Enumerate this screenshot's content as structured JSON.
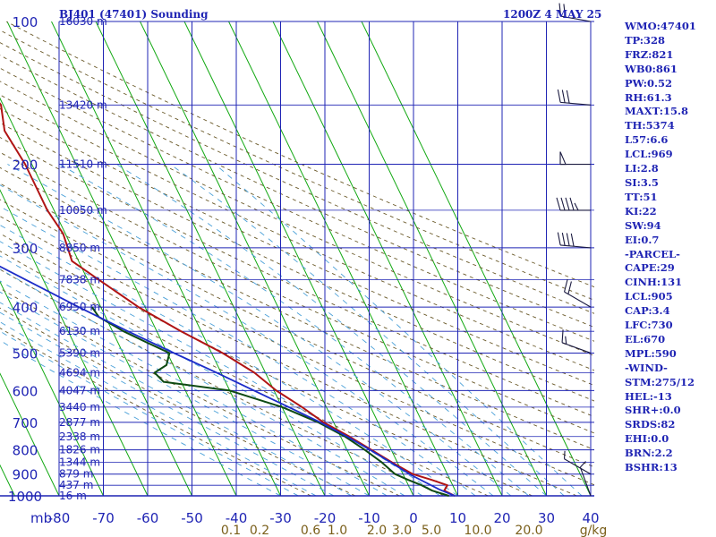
{
  "header": {
    "station": "BJ401 (47401) Sounding",
    "time": "1200Z  4 MAY 25"
  },
  "stats": [
    "WMO:47401",
    "TP:328",
    "FRZ:821",
    "WB0:861",
    "PW:0.52",
    "RH:61.3",
    "MAXT:15.8",
    "TH:5374",
    "L57:6.6",
    "LCL:969",
    "LI:2.8",
    "SI:3.5",
    "TT:51",
    "KI:22",
    "SW:94",
    "EI:0.7",
    "-PARCEL-",
    "CAPE:29",
    "CINH:131",
    "LCL:905",
    "CAP:3.4",
    "LFC:730",
    "EL:670",
    "MPL:590",
    "-WIND-",
    "STM:275/12",
    "HEL:-13",
    "SHR+:0.0",
    "SRDS:82",
    "EHI:0.0",
    "BRN:2.2",
    "BSHR:13"
  ],
  "colors": {
    "grid": "#1f24b4",
    "isotherm": "#12a812",
    "dry_adiabat": "#6b5a2a",
    "moist_adiabat": "#4aa0d8",
    "temperature": "#b01414",
    "dewpoint": "#0e4a12",
    "parcel": "#1c2cc8"
  },
  "chart_data": {
    "type": "line",
    "title": "BJ401 (47401) Sounding",
    "chart_kind": "skew-T log-P",
    "y_scale": "log",
    "ylim": [
      1000,
      100
    ],
    "xlim": [
      -80,
      40
    ],
    "pressure_levels": [
      100,
      200,
      300,
      400,
      500,
      600,
      700,
      800,
      900,
      1000
    ],
    "pressure_axis_label": "mb",
    "temperature_ticks": [
      -80,
      -70,
      -60,
      -50,
      -40,
      -30,
      -20,
      -10,
      0,
      10,
      20,
      30,
      40
    ],
    "temperature_tick_labels": [
      "-80",
      "-70",
      "-60",
      "-50",
      "-40",
      "-30",
      "-20",
      "-10",
      "0",
      "10",
      "20",
      "30",
      "40"
    ],
    "mixing_ratio_labels": [
      "0.1",
      "0.2",
      "0.6",
      "1.0",
      "2.0",
      "3.0",
      "5.0",
      "10.0",
      "20.0",
      "g/kg"
    ],
    "height_labels": [
      {
        "p": 100,
        "label": "16030 m"
      },
      {
        "p": 150,
        "label": "13420 m"
      },
      {
        "p": 200,
        "label": "11510 m"
      },
      {
        "p": 250,
        "label": "10050 m"
      },
      {
        "p": 300,
        "label": "8850 m"
      },
      {
        "p": 350,
        "label": "7838 m"
      },
      {
        "p": 400,
        "label": "6950 m"
      },
      {
        "p": 450,
        "label": "6130 m"
      },
      {
        "p": 500,
        "label": "5390 m"
      },
      {
        "p": 550,
        "label": "4694 m"
      },
      {
        "p": 600,
        "label": "4047 m"
      },
      {
        "p": 650,
        "label": "3440 m"
      },
      {
        "p": 700,
        "label": "2877 m"
      },
      {
        "p": 750,
        "label": "2338 m"
      },
      {
        "p": 800,
        "label": "1826 m"
      },
      {
        "p": 850,
        "label": "1344 m"
      },
      {
        "p": 900,
        "label": "879 m"
      },
      {
        "p": 950,
        "label": "437 m"
      },
      {
        "p": 1000,
        "label": "16 m"
      }
    ],
    "series": [
      {
        "key": "temperature",
        "points": [
          [
            1000,
            9.3
          ],
          [
            975,
            7.5
          ],
          [
            950,
            8.8
          ],
          [
            925,
            5.8
          ],
          [
            900,
            2.2
          ],
          [
            850,
            -1.2
          ],
          [
            800,
            -4.5
          ],
          [
            750,
            -8.0
          ],
          [
            700,
            -12.3
          ],
          [
            650,
            -15.5
          ],
          [
            600,
            -19.5
          ],
          [
            550,
            -22.5
          ],
          [
            500,
            -27.5
          ],
          [
            450,
            -34.5
          ],
          [
            400,
            -41.5
          ],
          [
            350,
            -47.5
          ],
          [
            320,
            -51.5
          ],
          [
            300,
            -51.0
          ],
          [
            280,
            -50.5
          ],
          [
            250,
            -51.5
          ],
          [
            220,
            -51.5
          ],
          [
            200,
            -51.5
          ],
          [
            170,
            -52.5
          ],
          [
            150,
            -50.5
          ],
          [
            140,
            -51.5
          ],
          [
            130,
            -53.5
          ],
          [
            120,
            -53.0
          ],
          [
            110,
            -56.0
          ],
          [
            100,
            -57.5
          ]
        ]
      },
      {
        "key": "dewpoint",
        "points": [
          [
            1000,
            8.0
          ],
          [
            975,
            4.8
          ],
          [
            950,
            3.0
          ],
          [
            925,
            0.5
          ],
          [
            900,
            -1.8
          ],
          [
            850,
            -3.5
          ],
          [
            800,
            -6.0
          ],
          [
            750,
            -9.0
          ],
          [
            700,
            -13.5
          ],
          [
            650,
            -20.0
          ],
          [
            600,
            -30.0
          ],
          [
            575,
            -44.0
          ],
          [
            550,
            -45.0
          ],
          [
            530,
            -41.5
          ],
          [
            500,
            -39.5
          ],
          [
            475,
            -43.5
          ],
          [
            450,
            -47.5
          ],
          [
            420,
            -51.5
          ],
          [
            400,
            -52.0
          ]
        ]
      },
      {
        "key": "parcel",
        "points": [
          [
            1000,
            9.3
          ],
          [
            969,
            6.5
          ],
          [
            905,
            1.8
          ],
          [
            850,
            -1.5
          ],
          [
            800,
            -4.8
          ],
          [
            750,
            -8.5
          ],
          [
            700,
            -13.0
          ],
          [
            650,
            -18.5
          ],
          [
            600,
            -24.5
          ],
          [
            550,
            -31.0
          ],
          [
            500,
            -38.5
          ],
          [
            450,
            -46.5
          ],
          [
            400,
            -55.0
          ],
          [
            350,
            -64.0
          ],
          [
            300,
            -74.5
          ],
          [
            280,
            -79.5
          ]
        ]
      }
    ],
    "wind_barbs": [
      {
        "p": 100,
        "dir": 280,
        "spd": 20
      },
      {
        "p": 150,
        "dir": 275,
        "spd": 30
      },
      {
        "p": 200,
        "dir": 270,
        "spd": 50
      },
      {
        "p": 250,
        "dir": 270,
        "spd": 45
      },
      {
        "p": 300,
        "dir": 275,
        "spd": 40
      },
      {
        "p": 400,
        "dir": 300,
        "spd": 20
      },
      {
        "p": 500,
        "dir": 290,
        "spd": 15
      },
      {
        "p": 900,
        "dir": 300,
        "spd": 5
      },
      {
        "p": 1000,
        "dir": 340,
        "spd": 5
      }
    ]
  }
}
